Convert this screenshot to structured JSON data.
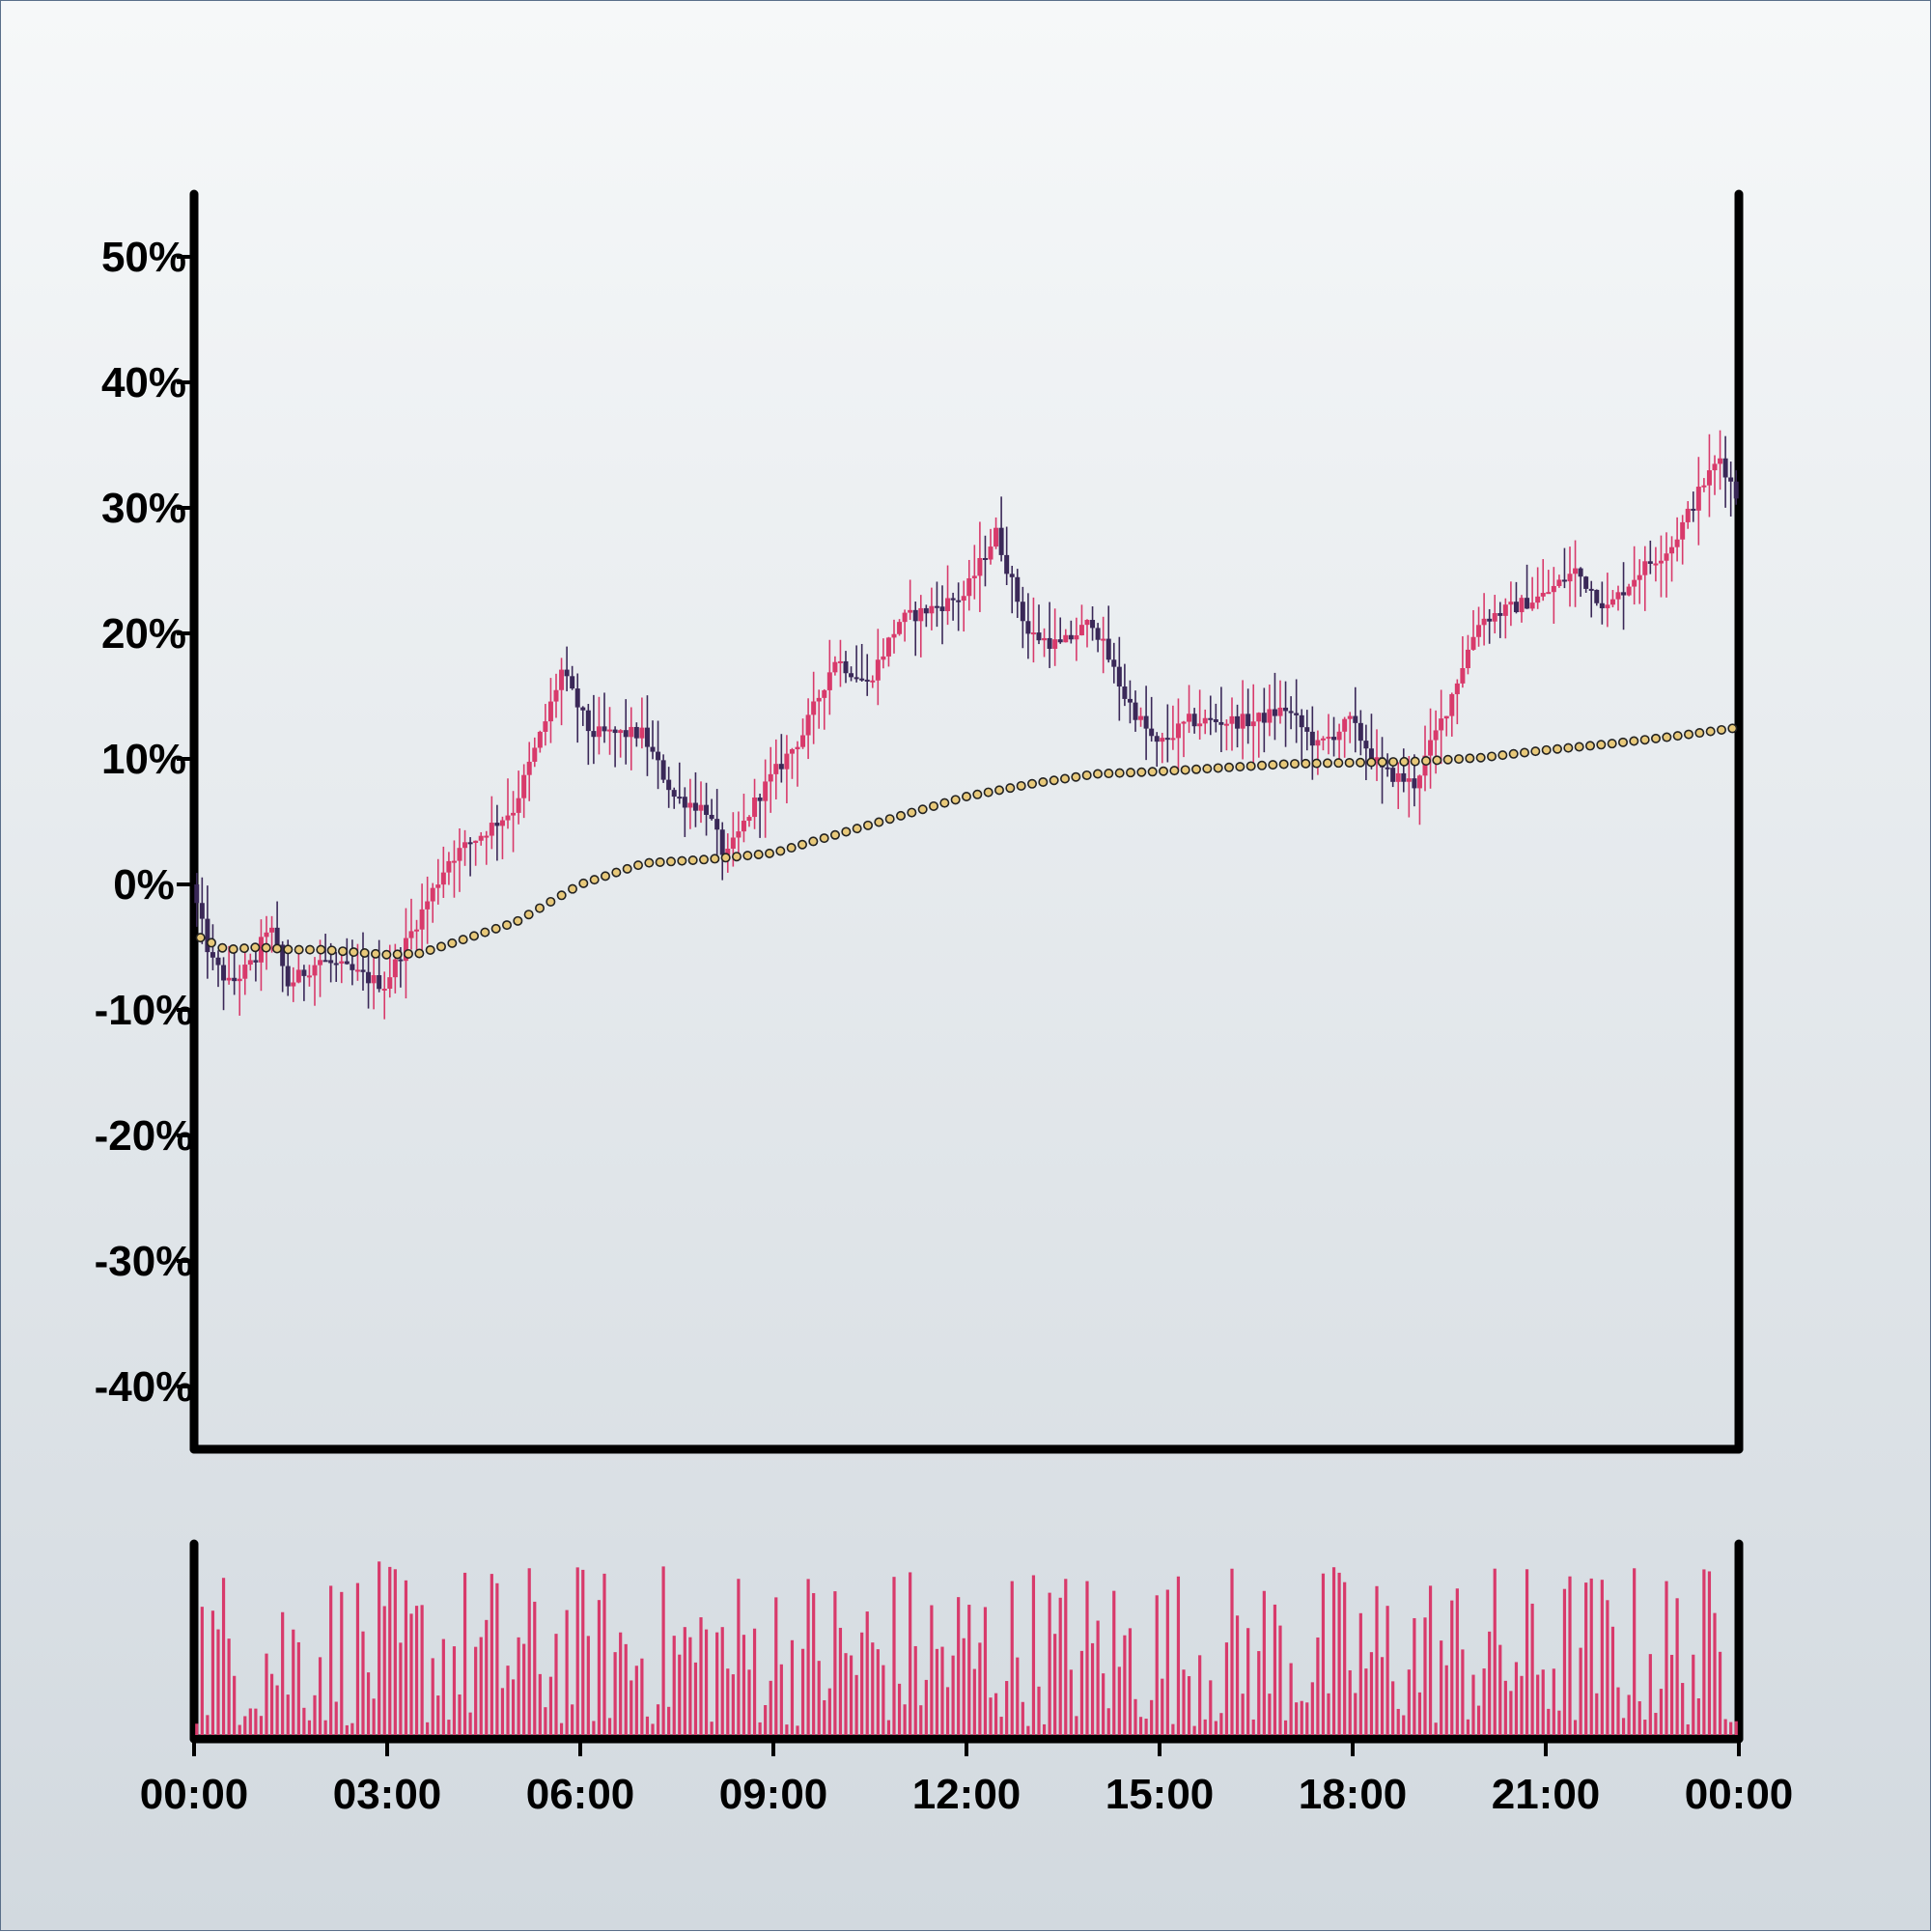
{
  "chart_data": {
    "type": "candlestick",
    "title": "",
    "xlabel": "",
    "ylabel": "",
    "ylim": [
      -0.45,
      0.55
    ],
    "xlim_hours": [
      0,
      24
    ],
    "y_ticks": [
      -0.4,
      -0.3,
      -0.2,
      -0.1,
      0.0,
      0.1,
      0.2,
      0.3,
      0.4,
      0.5
    ],
    "y_tick_labels": [
      "-40%",
      "-30%",
      "-20%",
      "-10%",
      "0%",
      "10%",
      "20%",
      "30%",
      "40%",
      "50%"
    ],
    "x_tick_labels": [
      "00:00",
      "03:00",
      "06:00",
      "09:00",
      "12:00",
      "15:00",
      "18:00",
      "21:00",
      "00:00"
    ],
    "interval_minutes": 5,
    "price_path": [
      [
        0,
        0.0
      ],
      [
        0.3,
        -0.06
      ],
      [
        0.6,
        -0.08
      ],
      [
        1.0,
        -0.06
      ],
      [
        1.2,
        -0.03
      ],
      [
        1.5,
        -0.08
      ],
      [
        2.0,
        -0.06
      ],
      [
        2.5,
        -0.07
      ],
      [
        3.0,
        -0.08
      ],
      [
        3.5,
        -0.03
      ],
      [
        4.0,
        0.02
      ],
      [
        4.5,
        0.04
      ],
      [
        5.0,
        0.06
      ],
      [
        5.5,
        0.13
      ],
      [
        5.75,
        0.17
      ],
      [
        6.2,
        0.12
      ],
      [
        7.0,
        0.12
      ],
      [
        7.5,
        0.07
      ],
      [
        8.0,
        0.06
      ],
      [
        8.3,
        0.02
      ],
      [
        8.8,
        0.07
      ],
      [
        9.5,
        0.12
      ],
      [
        10.0,
        0.18
      ],
      [
        10.5,
        0.16
      ],
      [
        11.0,
        0.21
      ],
      [
        12.0,
        0.23
      ],
      [
        12.5,
        0.28
      ],
      [
        13.0,
        0.2
      ],
      [
        13.5,
        0.19
      ],
      [
        14.0,
        0.21
      ],
      [
        14.5,
        0.15
      ],
      [
        15.0,
        0.11
      ],
      [
        15.5,
        0.13
      ],
      [
        16.0,
        0.13
      ],
      [
        16.5,
        0.13
      ],
      [
        17.0,
        0.14
      ],
      [
        17.5,
        0.11
      ],
      [
        18.0,
        0.13
      ],
      [
        18.5,
        0.09
      ],
      [
        19.0,
        0.08
      ],
      [
        19.5,
        0.14
      ],
      [
        20.0,
        0.21
      ],
      [
        20.5,
        0.22
      ],
      [
        21.0,
        0.23
      ],
      [
        21.5,
        0.25
      ],
      [
        22.0,
        0.22
      ],
      [
        22.5,
        0.25
      ],
      [
        23.0,
        0.27
      ],
      [
        23.5,
        0.32
      ],
      [
        23.75,
        0.34
      ],
      [
        24.0,
        0.31
      ]
    ],
    "moving_average": [
      [
        0,
        -0.04
      ],
      [
        0.5,
        -0.052
      ],
      [
        1.0,
        -0.05
      ],
      [
        1.5,
        -0.052
      ],
      [
        2.0,
        -0.052
      ],
      [
        3.0,
        -0.056
      ],
      [
        3.5,
        -0.055
      ],
      [
        4.0,
        -0.047
      ],
      [
        5.0,
        -0.03
      ],
      [
        6.0,
        0.0
      ],
      [
        7.0,
        0.017
      ],
      [
        8.0,
        0.02
      ],
      [
        9.0,
        0.025
      ],
      [
        10.0,
        0.04
      ],
      [
        11.0,
        0.055
      ],
      [
        12.0,
        0.07
      ],
      [
        13.0,
        0.08
      ],
      [
        14.0,
        0.088
      ],
      [
        15.0,
        0.09
      ],
      [
        16.0,
        0.093
      ],
      [
        17.0,
        0.096
      ],
      [
        18.0,
        0.097
      ],
      [
        19.0,
        0.098
      ],
      [
        20.0,
        0.101
      ],
      [
        21.0,
        0.107
      ],
      [
        22.0,
        0.112
      ],
      [
        23.0,
        0.118
      ],
      [
        24.0,
        0.125
      ]
    ],
    "volume_profile": "random bars, relative height 0.05-1.0",
    "colors": {
      "up": "#d83a6b",
      "down": "#3a2858",
      "wick_up": "#d83a6b",
      "wick_down": "#3a2858",
      "ma_fill": "#e8c97a",
      "ma_stroke": "#222222",
      "volume": "#d83a6b",
      "axis": "#000000"
    },
    "grid": false
  }
}
